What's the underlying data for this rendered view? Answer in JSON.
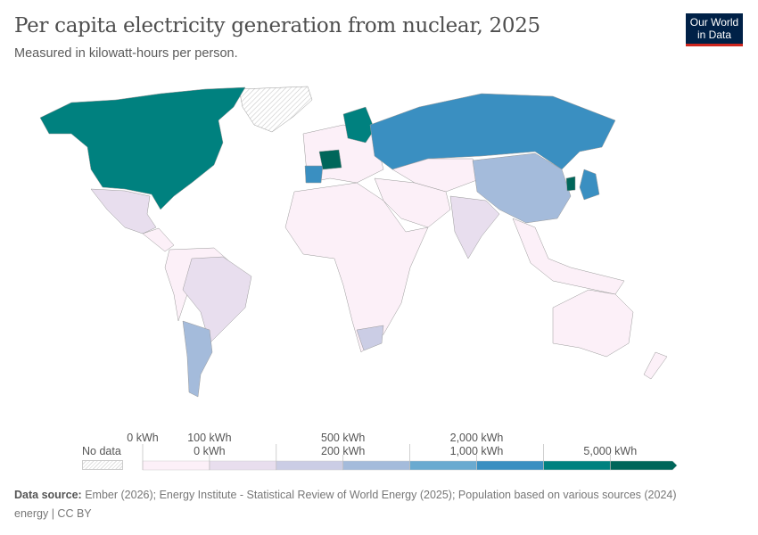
{
  "header": {
    "title": "Per capita electricity generation from nuclear, 2025",
    "subtitle": "Measured in kilowatt-hours per person.",
    "logo": "Our World in Data"
  },
  "chart_data": {
    "type": "choropleth-map",
    "title": "Per capita electricity generation from nuclear, 2025",
    "unit": "kWh",
    "no_data_label": "No data",
    "no_data_color": "#e0e0e0",
    "bins": [
      {
        "upper_label": "0 kWh",
        "lower_label": "0 kWh",
        "color": "#fcf0f8"
      },
      {
        "upper_label": "100 kWh",
        "color": "#e8deee"
      },
      {
        "lower_label": "200 kWh",
        "color": "#cbcde5"
      },
      {
        "upper_label": "500 kWh",
        "color": "#a4bbdb"
      },
      {
        "lower_label": "1,000 kWh",
        "color": "#6aaad0"
      },
      {
        "upper_label": "2,000 kWh",
        "color": "#3a8fc1"
      },
      {
        "lower_label": "5,000 kWh",
        "color": "#00817f"
      },
      {
        "color": "#00665a"
      }
    ]
  },
  "footer": {
    "source_label": "Data source:",
    "source": "Ember (2026); Energy Institute - Statistical Review of World Energy (2025); Population based on various sources (2024)",
    "license": "energy | CC BY"
  }
}
